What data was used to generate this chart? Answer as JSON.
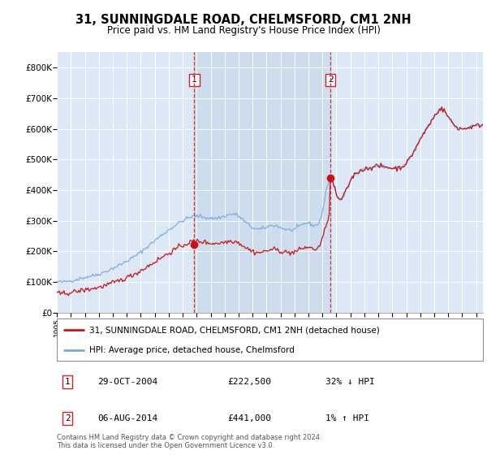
{
  "title": "31, SUNNINGDALE ROAD, CHELMSFORD, CM1 2NH",
  "subtitle": "Price paid vs. HM Land Registry's House Price Index (HPI)",
  "background_color": "#ffffff",
  "plot_bg_color": "#dce8f5",
  "shade_color": "#ccddf0",
  "grid_color": "#ffffff",
  "ylim": [
    0,
    850000
  ],
  "yticks": [
    0,
    100000,
    200000,
    300000,
    400000,
    500000,
    600000,
    700000,
    800000
  ],
  "ytick_labels": [
    "£0",
    "£100K",
    "£200K",
    "£300K",
    "£400K",
    "£500K",
    "£600K",
    "£700K",
    "£800K"
  ],
  "xstart": 1995.0,
  "xend": 2025.5,
  "sale1_year": 2004.83,
  "sale1_price": 222500,
  "sale2_year": 2014.58,
  "sale2_price": 441000,
  "sale1_note": "29-OCT-2004",
  "sale1_amount": "£222,500",
  "sale1_hpi": "32% ↓ HPI",
  "sale2_note": "06-AUG-2014",
  "sale2_amount": "£441,000",
  "sale2_hpi": "1% ↑ HPI",
  "legend_line1": "31, SUNNINGDALE ROAD, CHELMSFORD, CM1 2NH (detached house)",
  "legend_line2": "HPI: Average price, detached house, Chelmsford",
  "footer": "Contains HM Land Registry data © Crown copyright and database right 2024.\nThis data is licensed under the Open Government Licence v3.0.",
  "hpi_color": "#7aaadd",
  "price_color": "#cc1111",
  "vline_color": "#cc3333",
  "box_color": "#cc2222"
}
